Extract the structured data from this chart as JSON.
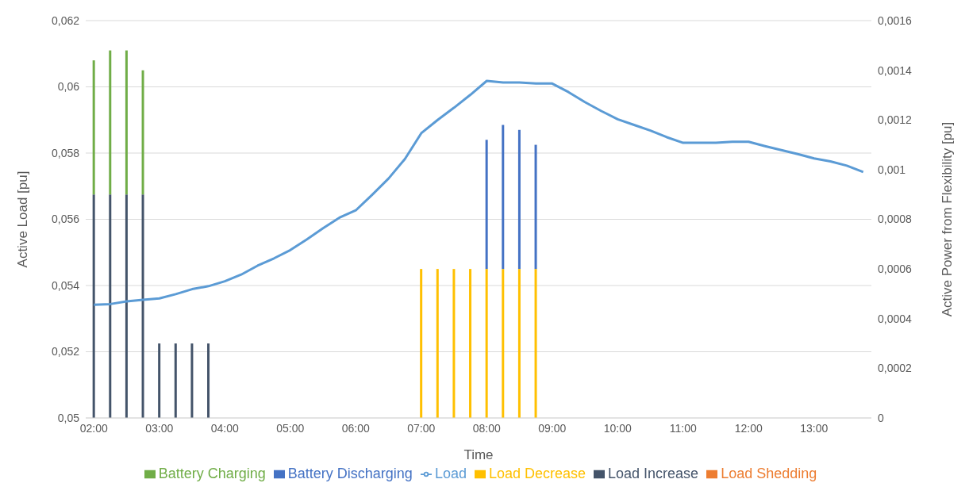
{
  "chart_data": {
    "type": "bar",
    "stacked": true,
    "xlabel": "Time",
    "ylabel": "Active Load [pu]",
    "y2label": "Active Power from Flexibility [pu]",
    "categories": [
      "02:00",
      null,
      null,
      null,
      "03:00",
      null,
      null,
      null,
      "04:00",
      null,
      null,
      null,
      "05:00",
      null,
      null,
      null,
      "06:00",
      null,
      null,
      null,
      "07:00",
      null,
      null,
      null,
      "08:00",
      null,
      null,
      null,
      "09:00",
      null,
      null,
      null,
      "10:00",
      null,
      null,
      null,
      "11:00",
      null,
      null,
      null,
      "12:00",
      null,
      null,
      null,
      "13:00",
      null,
      null,
      null
    ],
    "series": [
      {
        "name": "Load Shedding",
        "color": "#ed7d31",
        "axis": "y2",
        "values": [
          null,
          null,
          null,
          null,
          null,
          null,
          null,
          null,
          null,
          null,
          null,
          null,
          null,
          null,
          null,
          null,
          null,
          null,
          null,
          null,
          null,
          null,
          null,
          null,
          null,
          null,
          null,
          null,
          null,
          null,
          null,
          null,
          null,
          null,
          null,
          null,
          null,
          null,
          null,
          null,
          null,
          null,
          null,
          null,
          null,
          null,
          null,
          null
        ]
      },
      {
        "name": "Load Increase",
        "color": "#44546a",
        "axis": "y2",
        "values": [
          0.0009,
          0.0009,
          0.0009,
          0.0009,
          0.0003,
          0.0003,
          0.0003,
          0.0003,
          null,
          null,
          null,
          null,
          null,
          null,
          null,
          null,
          null,
          null,
          null,
          null,
          null,
          null,
          null,
          null,
          null,
          null,
          null,
          null,
          null,
          null,
          null,
          null,
          null,
          null,
          null,
          null,
          null,
          null,
          null,
          null,
          null,
          null,
          null,
          null,
          null,
          null,
          null,
          null
        ]
      },
      {
        "name": "Load Decrease",
        "color": "#ffc000",
        "axis": "y2",
        "values": [
          null,
          null,
          null,
          null,
          null,
          null,
          null,
          null,
          null,
          null,
          null,
          null,
          null,
          null,
          null,
          null,
          null,
          null,
          null,
          null,
          0.0006,
          0.0006,
          0.0006,
          0.0006,
          0.0006,
          0.0006,
          0.0006,
          0.0006,
          null,
          null,
          null,
          null,
          null,
          null,
          null,
          null,
          null,
          null,
          null,
          null,
          null,
          null,
          null,
          null,
          null,
          null,
          null,
          null
        ]
      },
      {
        "name": "Battery Charging",
        "color": "#70ad47",
        "axis": "y2",
        "values": [
          0.00054,
          0.00058,
          0.00058,
          0.0005,
          null,
          null,
          null,
          null,
          null,
          null,
          null,
          null,
          null,
          null,
          null,
          null,
          null,
          null,
          null,
          null,
          null,
          null,
          null,
          null,
          null,
          null,
          null,
          null,
          null,
          null,
          null,
          null,
          null,
          null,
          null,
          null,
          null,
          null,
          null,
          null,
          null,
          null,
          null,
          null,
          null,
          null,
          null,
          null
        ]
      },
      {
        "name": "Battery Discharging",
        "color": "#4472c4",
        "axis": "y2",
        "values": [
          null,
          null,
          null,
          null,
          null,
          null,
          null,
          null,
          null,
          null,
          null,
          null,
          null,
          null,
          null,
          null,
          null,
          null,
          null,
          null,
          null,
          null,
          null,
          null,
          0.00052,
          0.00058,
          0.00056,
          0.0005,
          null,
          null,
          null,
          null,
          null,
          null,
          null,
          null,
          null,
          null,
          null,
          null,
          null,
          null,
          null,
          null,
          null,
          null,
          null,
          null
        ]
      },
      {
        "name": "Load",
        "type": "line",
        "color": "#5b9bd5",
        "values": [
          0.05342,
          0.05344,
          0.05352,
          0.05357,
          0.05361,
          0.05374,
          0.05389,
          0.05398,
          0.05413,
          0.05433,
          0.0546,
          0.05482,
          0.05507,
          0.05539,
          0.05573,
          0.05605,
          0.05627,
          0.05674,
          0.05723,
          0.05782,
          0.0586,
          0.059,
          0.05937,
          0.05976,
          0.06018,
          0.06013,
          0.06013,
          0.0601,
          0.0601,
          0.05984,
          0.05954,
          0.05927,
          0.05902,
          0.05885,
          0.05868,
          0.05848,
          0.05831,
          0.05831,
          0.05831,
          0.05834,
          0.05834,
          0.05821,
          0.05809,
          0.05797,
          0.05784,
          0.05775,
          0.05762,
          0.05743
        ]
      }
    ],
    "ylim": [
      0.05,
      0.062
    ],
    "yticks": [
      {
        "value": 0.05,
        "label": "0,05"
      },
      {
        "value": 0.052,
        "label": "0,052"
      },
      {
        "value": 0.054,
        "label": "0,054"
      },
      {
        "value": 0.056,
        "label": "0,056"
      },
      {
        "value": 0.058,
        "label": "0,058"
      },
      {
        "value": 0.06,
        "label": "0,06"
      },
      {
        "value": 0.062,
        "label": "0,062"
      }
    ],
    "y2lim": [
      0,
      0.0016
    ],
    "y2ticks": [
      0,
      {
        "value": 0.0002,
        "label": "0,0002"
      },
      {
        "value": 0.0004,
        "label": "0,0004"
      },
      {
        "value": 0.0006,
        "label": "0,0006"
      },
      {
        "value": 0.0008,
        "label": "0,0008"
      },
      {
        "value": 0.001,
        "label": "0,001"
      },
      {
        "value": 0.0012,
        "label": "0,0012"
      },
      {
        "value": 0.0014,
        "label": "0,0014"
      },
      {
        "value": 0.0016,
        "label": "0,0016"
      }
    ],
    "grid": "y",
    "legend": "bottom"
  }
}
